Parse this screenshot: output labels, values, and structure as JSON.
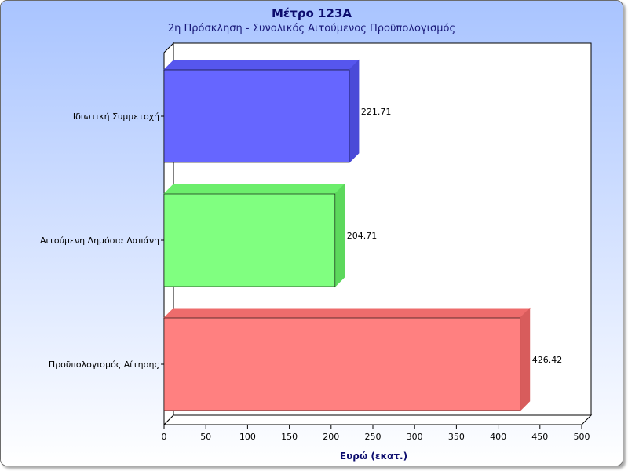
{
  "chart_data": {
    "type": "bar",
    "orientation": "horizontal",
    "title": "Μέτρο 123Α",
    "subtitle": "2η Πρόσκληση - Συνολικός Αιτούμενος Προϋπολογισμός",
    "xlabel": "Ευρώ (εκατ.)",
    "ylabel": "",
    "xlim": [
      0,
      500
    ],
    "xticks": [
      "0",
      "50",
      "100",
      "150",
      "200",
      "250",
      "300",
      "350",
      "400",
      "450",
      "500"
    ],
    "categories": [
      "Ιδιωτική Συμμετοχή",
      "Αιτούμενη Δημόσια Δαπάνη",
      "Προϋπολογισμός Αίτησης"
    ],
    "values": [
      221.71,
      204.71,
      426.42
    ],
    "value_labels": [
      "221.71",
      "204.71",
      "426.42"
    ],
    "colors": [
      "#6666ff",
      "#80ff80",
      "#ff8080"
    ],
    "side_colors": [
      "#4a4ad8",
      "#5cd85c",
      "#d85c5c"
    ],
    "top_colors": [
      "#5656ee",
      "#6cee6c",
      "#ee6c6c"
    ],
    "background_gradient": [
      "#a9c4ff",
      "#ffffff"
    ],
    "grid": false,
    "legend": "none",
    "style": "3d"
  }
}
